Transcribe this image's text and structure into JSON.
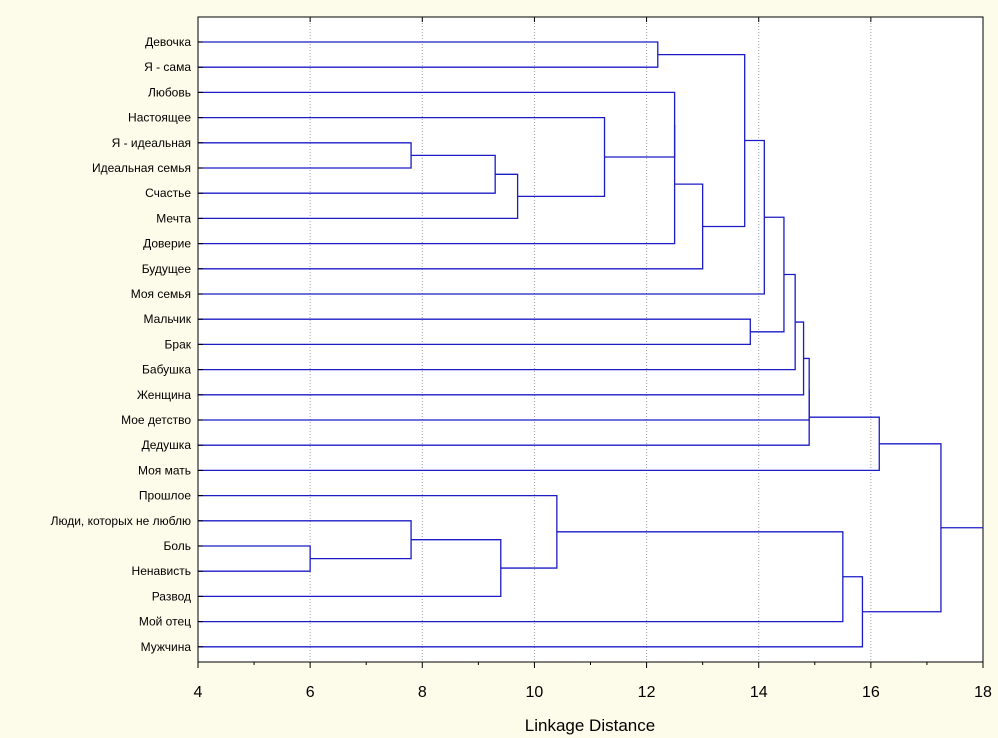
{
  "chart_data": {
    "type": "dendrogram",
    "xlabel": "Linkage Distance",
    "xlim": [
      4,
      18
    ],
    "xticks": [
      4,
      6,
      8,
      10,
      12,
      14,
      16,
      18
    ],
    "grid": "vertical dotted",
    "colors": {
      "background": "#fdfbe9",
      "plot_area": "#ffffff",
      "links": "#1b1bc8",
      "grid": "#a0a0a0"
    },
    "leaves": [
      "Девочка",
      "Я - сама",
      "Любовь",
      "Настоящее",
      "Я - идеальная",
      "Идеальная семья",
      "Счастье",
      "Мечта",
      "Доверие",
      "Будущее",
      "Моя семья",
      "Мальчик",
      "Брак",
      "Бабушка",
      "Женщина",
      "Мое детство",
      "Дедушка",
      "Моя мать",
      "Прошлое",
      "Люди, которых не люблю",
      "Боль",
      "Ненависть",
      "Развод",
      "Мой отец",
      "Мужчина"
    ],
    "merges": [
      {
        "a": "L4",
        "b": "L5",
        "height": 7.8
      },
      {
        "a": "M0",
        "b": "L6",
        "height": 9.3
      },
      {
        "a": "M1",
        "b": "L7",
        "height": 9.7
      },
      {
        "a": "L3",
        "b": "M2",
        "height": 11.25
      },
      {
        "a": "L2",
        "b": "M3",
        "height": 12.5
      },
      {
        "a": "M4",
        "b": "L8",
        "height": 12.5
      },
      {
        "a": "M5",
        "b": "L9",
        "height": 13.0
      },
      {
        "a": "L0",
        "b": "L1",
        "height": 12.2
      },
      {
        "a": "M7",
        "b": "M6",
        "height": 13.75
      },
      {
        "a": "M8",
        "b": "L10",
        "height": 14.1
      },
      {
        "a": "L11",
        "b": "L12",
        "height": 13.85
      },
      {
        "a": "M9",
        "b": "M10",
        "height": 14.45
      },
      {
        "a": "M11",
        "b": "L13",
        "height": 14.65
      },
      {
        "a": "M12",
        "b": "L14",
        "height": 14.8
      },
      {
        "a": "M13",
        "b": "L15",
        "height": 14.9
      },
      {
        "a": "M14",
        "b": "L16",
        "height": 14.9
      },
      {
        "a": "M15",
        "b": "L17",
        "height": 16.15
      },
      {
        "a": "L20",
        "b": "L21",
        "height": 6.0
      },
      {
        "a": "L19",
        "b": "M17",
        "height": 7.8
      },
      {
        "a": "M18",
        "b": "L22",
        "height": 9.4
      },
      {
        "a": "L18",
        "b": "M19",
        "height": 10.4
      },
      {
        "a": "M20",
        "b": "L23",
        "height": 15.5
      },
      {
        "a": "M21",
        "b": "L24",
        "height": 15.85
      },
      {
        "a": "M16",
        "b": "M22",
        "height": 17.25
      }
    ]
  }
}
